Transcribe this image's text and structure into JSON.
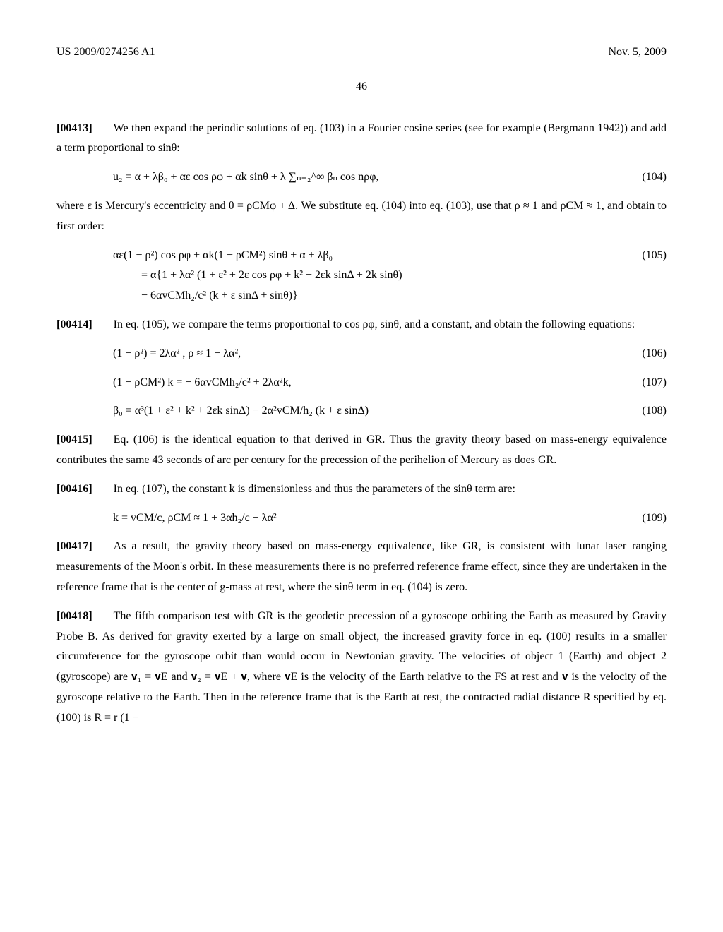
{
  "header": {
    "left": "US 2009/0274256 A1",
    "right": "Nov. 5, 2009"
  },
  "page_number": "46",
  "paragraphs": {
    "p00413": {
      "num": "[00413]",
      "text": "We then expand the periodic solutions of eq. (103) in a Fourier cosine series (see for example (Bergmann 1942)) and add a term proportional to sinθ:"
    },
    "eq104": {
      "content": "u₂ = α + λβ₀ + αε cos ρφ + αk sinθ + λ ∑ₙ₌₂^∞ βₙ cos nρφ,",
      "num": "(104)"
    },
    "after104": "where ε is Mercury's eccentricity and θ = ρCMφ + Δ. We substitute eq. (104) into eq. (103), use that ρ ≈ 1 and ρCM ≈ 1, and obtain to first order:",
    "eq105": {
      "line1": "αε(1 − ρ²) cos ρφ + αk(1 − ρCM²) sinθ + α + λβ₀",
      "line2": "= α{1 + λα² (1 + ε² + 2ε cos ρφ + k² + 2εk sinΔ + 2k sinθ)",
      "line3": "− 6αvCMh₂/c² (k + ε sinΔ + sinθ)}",
      "num": "(105)"
    },
    "p00414": {
      "num": "[00414]",
      "text": "In eq. (105), we compare the terms proportional to cos ρφ, sinθ, and a constant, and obtain the following equations:"
    },
    "eq106": {
      "content": "(1 − ρ²) = 2λα² , ρ ≈ 1 − λα²,",
      "num": "(106)"
    },
    "eq107": {
      "content": "(1 − ρCM²) k = − 6αvCMh₂/c² + 2λα²k,",
      "num": "(107)"
    },
    "eq108": {
      "content": "β₀ = α³(1 + ε²  + k² + 2εk sinΔ) − 2α²vCM/h₂ (k + ε sinΔ)",
      "num": "(108)"
    },
    "p00415": {
      "num": "[00415]",
      "text": "Eq. (106) is the identical equation to that derived in GR. Thus the gravity theory based on mass-energy equivalence contributes the same 43 seconds of arc per century for the precession of the perihelion of Mercury as does GR."
    },
    "p00416": {
      "num": "[00416]",
      "text": "In eq. (107), the constant k is dimensionless and thus the parameters of the sinθ term are:"
    },
    "eq109": {
      "content": "k = vCM/c, ρCM ≈ 1 + 3αh₂/c − λα²",
      "num": "(109)"
    },
    "p00417": {
      "num": "[00417]",
      "text": "As a result, the gravity theory based on mass-energy equivalence, like GR, is consistent with lunar laser ranging measurements of the Moon's orbit. In these measurements there is no preferred reference frame effect, since they are undertaken in the reference frame that is the center of g-mass at rest, where the sinθ term in eq. (104) is zero."
    },
    "p00418": {
      "num": "[00418]",
      "text": "The fifth comparison test with GR is the geodetic precession of a gyroscope orbiting the Earth as measured by Gravity Probe B. As derived for gravity exerted by a large on small object, the increased gravity force in eq. (100) results in a smaller circumference for the gyroscope orbit than would occur in Newtonian gravity. The velocities of object 1 (Earth) and object 2 (gyroscope) are 𝐯₁ = 𝐯E and 𝐯₂ = 𝐯E + 𝐯, where 𝐯E is the velocity of the Earth relative to the FS at rest and 𝐯 is the velocity of the gyroscope relative to the Earth. Then in the reference frame that is the Earth at rest, the contracted radial distance R specified by eq. (100) is R = r (1 −"
    }
  }
}
